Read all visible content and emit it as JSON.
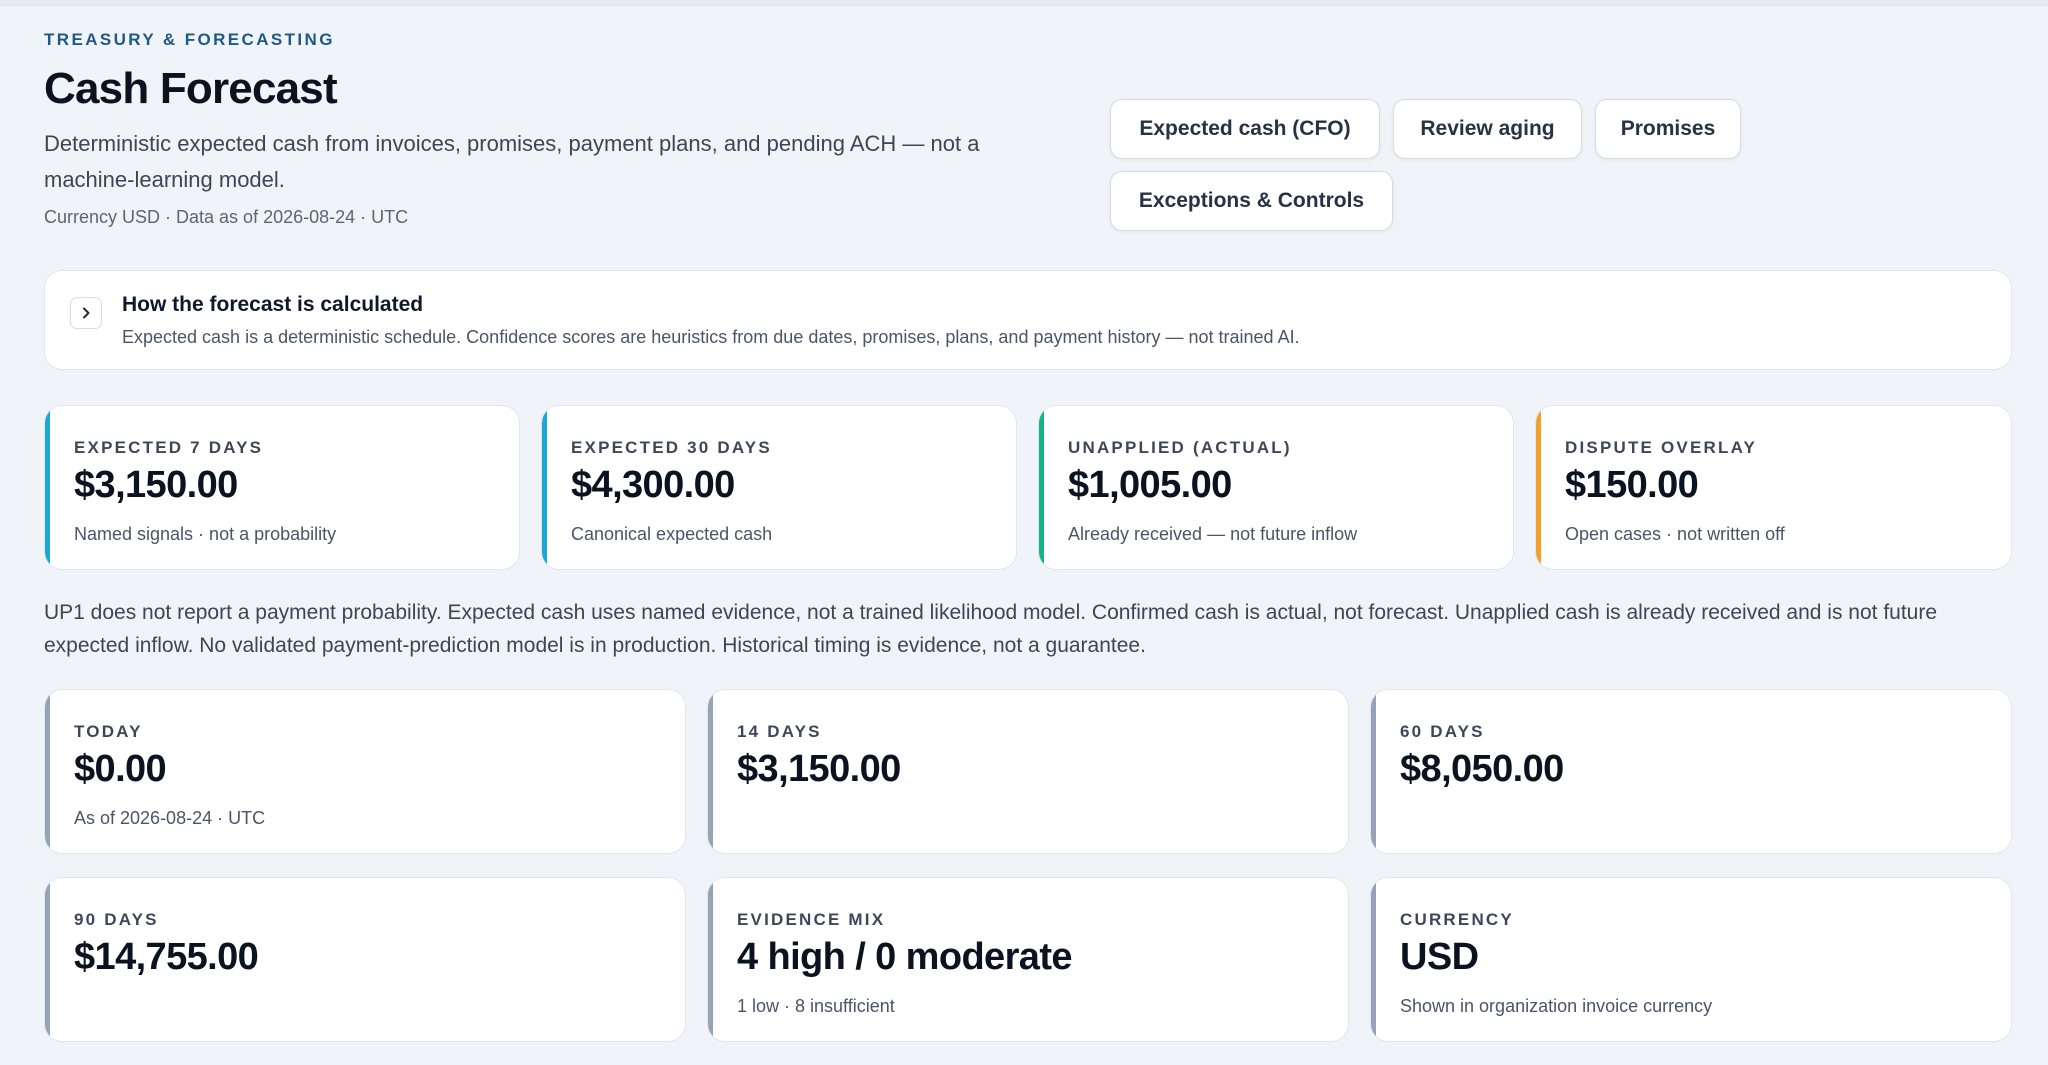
{
  "header": {
    "eyebrow": "TREASURY & FORECASTING",
    "title": "Cash Forecast",
    "description": "Deterministic expected cash from invoices, promises, payment plans, and pending ACH — not a machine-learning model.",
    "meta": "Currency USD · Data as of 2026-08-24 · UTC"
  },
  "actions": {
    "expected_cash": "Expected cash (CFO)",
    "review_aging": "Review aging",
    "promises": "Promises",
    "exceptions": "Exceptions & Controls"
  },
  "how": {
    "title": "How the forecast is calculated",
    "text": "Expected cash is a deterministic schedule. Confidence scores are heuristics from due dates, promises, plans, and payment history — not trained AI.",
    "icon": "chevron-right-icon"
  },
  "summary": [
    {
      "label": "EXPECTED 7 DAYS",
      "value": "$3,150.00",
      "note": "Named signals · not a probability",
      "accent": "#1ea7d6"
    },
    {
      "label": "EXPECTED 30 DAYS",
      "value": "$4,300.00",
      "note": "Canonical expected cash",
      "accent": "#1ea7d6"
    },
    {
      "label": "UNAPPLIED (ACTUAL)",
      "value": "$1,005.00",
      "note": "Already received — not future inflow",
      "accent": "#14b38a"
    },
    {
      "label": "DISPUTE OVERLAY",
      "value": "$150.00",
      "note": "Open cases · not written off",
      "accent": "#f2a12a"
    }
  ],
  "disclaimer": "UP1 does not report a payment probability. Expected cash uses named evidence, not a trained likelihood model. Confirmed cash is actual, not forecast. Unapplied cash is already received and is not future expected inflow. No validated payment-prediction model is in production. Historical timing is evidence, not a guarantee.",
  "horizons": [
    {
      "label": "TODAY",
      "value": "$0.00",
      "note": "As of 2026-08-24 · UTC"
    },
    {
      "label": "14 DAYS",
      "value": "$3,150.00",
      "note": ""
    },
    {
      "label": "60 DAYS",
      "value": "$8,050.00",
      "note": ""
    },
    {
      "label": "90 DAYS",
      "value": "$14,755.00",
      "note": ""
    },
    {
      "label": "EVIDENCE MIX",
      "value": "4 high / 0 moderate",
      "note": "1 low · 8 insufficient"
    },
    {
      "label": "CURRENCY",
      "value": "USD",
      "note": "Shown in organization invoice currency"
    }
  ],
  "colors": {
    "horizon_accent": "#94a3b8"
  }
}
